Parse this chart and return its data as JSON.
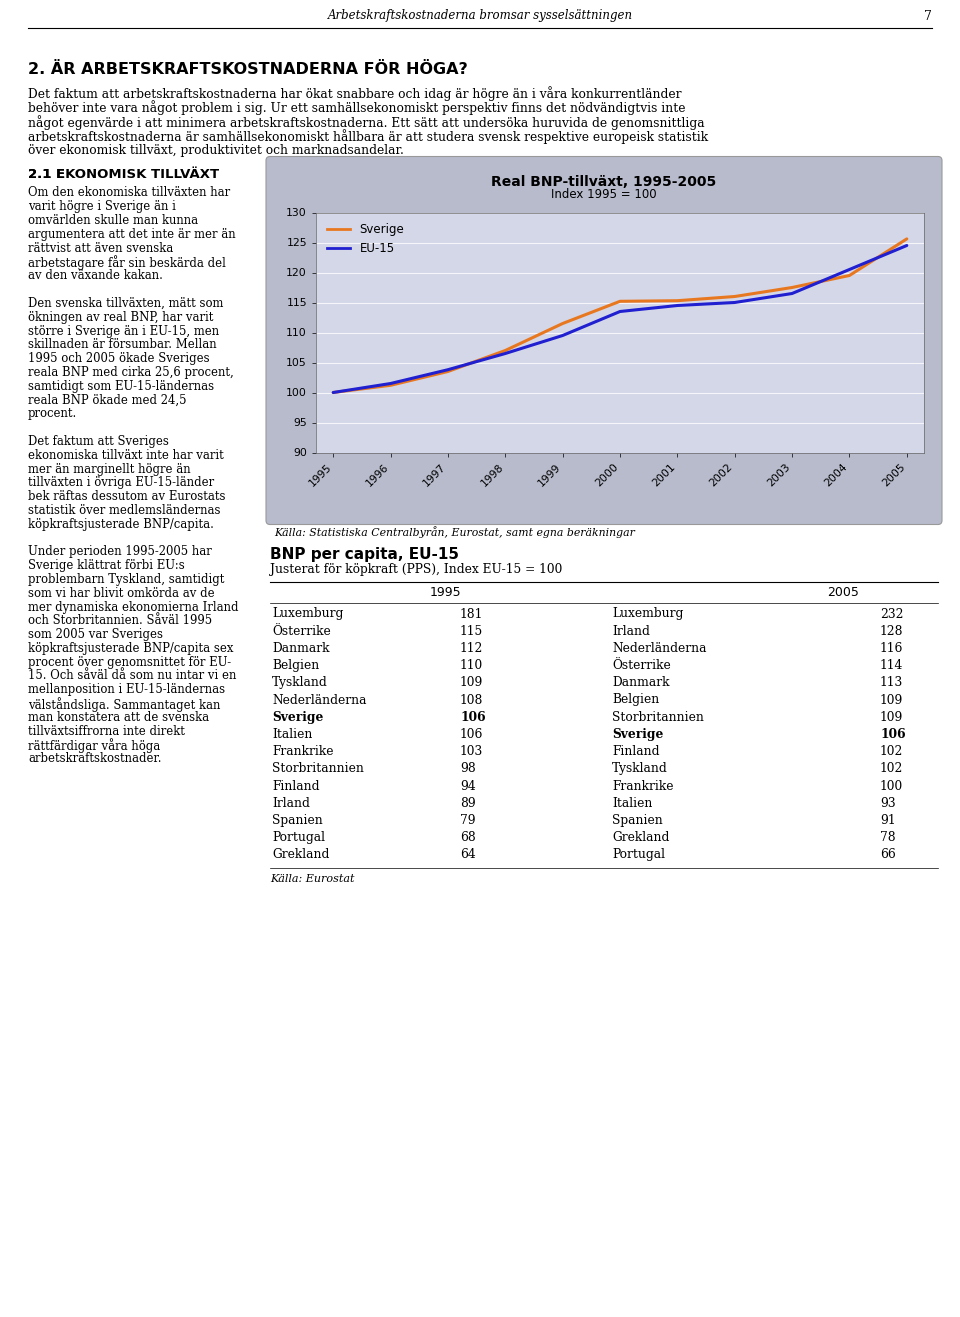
{
  "header_text": "Arbetskraftskostnaderna bromsar sysselsättningen",
  "header_page": "7",
  "section_title": "2. ÄR ARBETSKRAFTSKOSTNADERNA FÖR HÖGA?",
  "chart_title": "Real BNP-tillväxt, 1995-2005",
  "chart_subtitle": "Index 1995 = 100",
  "chart_source": "Källa: Statistiska Centralbyrån, Eurostat, samt egna beräkningar",
  "chart_bg": "#b8bbcc",
  "chart_plot_bg": "#d4d7e8",
  "years": [
    1995,
    1996,
    1997,
    1998,
    1999,
    2000,
    2001,
    2002,
    2003,
    2004,
    2005
  ],
  "sverige": [
    100,
    101.2,
    103.5,
    107.0,
    111.5,
    115.2,
    115.3,
    116.0,
    117.5,
    119.5,
    125.6
  ],
  "eu15": [
    100,
    101.5,
    103.8,
    106.5,
    109.5,
    113.5,
    114.5,
    115.0,
    116.5,
    120.5,
    124.5
  ],
  "sverige_color": "#e87820",
  "eu15_color": "#2020d0",
  "ylim": [
    90,
    130
  ],
  "yticks": [
    90,
    95,
    100,
    105,
    110,
    115,
    120,
    125,
    130
  ],
  "table_title": "BNP per capita, EU-15",
  "table_subtitle": "Justerat för köpkraft (PPS), Index EU-15 = 100",
  "table_1995": [
    [
      "Luxemburg",
      "181"
    ],
    [
      "Österrike",
      "115"
    ],
    [
      "Danmark",
      "112"
    ],
    [
      "Belgien",
      "110"
    ],
    [
      "Tyskland",
      "109"
    ],
    [
      "Nederländerna",
      "108"
    ],
    [
      "Sverige",
      "106"
    ],
    [
      "Italien",
      "106"
    ],
    [
      "Frankrike",
      "103"
    ],
    [
      "Storbritannien",
      "98"
    ],
    [
      "Finland",
      "94"
    ],
    [
      "Irland",
      "89"
    ],
    [
      "Spanien",
      "79"
    ],
    [
      "Portugal",
      "68"
    ],
    [
      "Grekland",
      "64"
    ]
  ],
  "table_2005": [
    [
      "Luxemburg",
      "232"
    ],
    [
      "Irland",
      "128"
    ],
    [
      "Nederländerna",
      "116"
    ],
    [
      "Österrike",
      "114"
    ],
    [
      "Danmark",
      "113"
    ],
    [
      "Belgien",
      "109"
    ],
    [
      "Storbritannien",
      "109"
    ],
    [
      "Sverige",
      "106"
    ],
    [
      "Finland",
      "102"
    ],
    [
      "Tyskland",
      "102"
    ],
    [
      "Frankrike",
      "100"
    ],
    [
      "Italien",
      "93"
    ],
    [
      "Spanien",
      "91"
    ],
    [
      "Grekland",
      "78"
    ],
    [
      "Portugal",
      "66"
    ]
  ],
  "table_bold_1995": [
    "Sverige"
  ],
  "table_bold_2005": [
    "Sverige"
  ],
  "table_source": "Källa: Eurostat",
  "section2_title": "2.1 EKONOMISK TILLVÄXT",
  "left_col_lines": [
    "Om den ekonomiska tillväxten har",
    "varit högre i Sverige än i",
    "omvärlden skulle man kunna",
    "argumentera att det inte är mer än",
    "rättvist att även svenska",
    "arbetstagare får sin beskärda del",
    "av den växande kakan.",
    "",
    "Den svenska tillväxten, mätt som",
    "ökningen av real BNP, har varit",
    "större i Sverige än i EU-15, men",
    "skillnaden är försumbar. Mellan",
    "1995 och 2005 ökade Sveriges",
    "reala BNP med cirka 25,6 procent,",
    "samtidigt som EU-15-ländernas",
    "reala BNP ökade med 24,5",
    "procent.",
    "",
    "Det faktum att Sveriges",
    "ekonomiska tillväxt inte har varit",
    "mer än marginellt högre än",
    "tillväxten i övriga EU-15-länder",
    "bek räftas dessutom av Eurostats",
    "statistik över medlemsländernas",
    "köpkraftsjusterade BNP/capita.",
    "",
    "Under perioden 1995-2005 har",
    "Sverige klättrat förbi EU:s",
    "problembarn Tyskland, samtidigt",
    "som vi har blivit omkörda av de",
    "mer dynamiska ekonomierna Irland",
    "och Storbritannien. Såväl 1995",
    "som 2005 var Sveriges",
    "köpkraftsjusterade BNP/capita sex",
    "procent över genomsnittet för EU-",
    "15. Och såväl då som nu intar vi en",
    "mellanposition i EU-15-ländernas",
    "välståndsliga. Sammantaget kan",
    "man konstatera att de svenska",
    "tillväxtsiffrorna inte direkt",
    "rättfärdigar våra höga",
    "arbetskraftskostnader."
  ],
  "para_lines": [
    "Det faktum att arbetskraftskostnaderna har ökat snabbare och idag är högre än i våra konkurrentländer",
    "behöver inte vara något problem i sig. Ur ett samhällsekonomiskt perspektiv finns det nödvändigtvis inte",
    "något egenvärde i att minimera arbetskraftskostnaderna. Ett sätt att undersöka huruvida de genomsnittliga",
    "arbetskraftskostnaderna är samhällsekonomiskt hållbara är att studera svensk respektive europeisk statistik",
    "över ekonomisk tillväxt, produktivitet och marknadsandelar."
  ]
}
